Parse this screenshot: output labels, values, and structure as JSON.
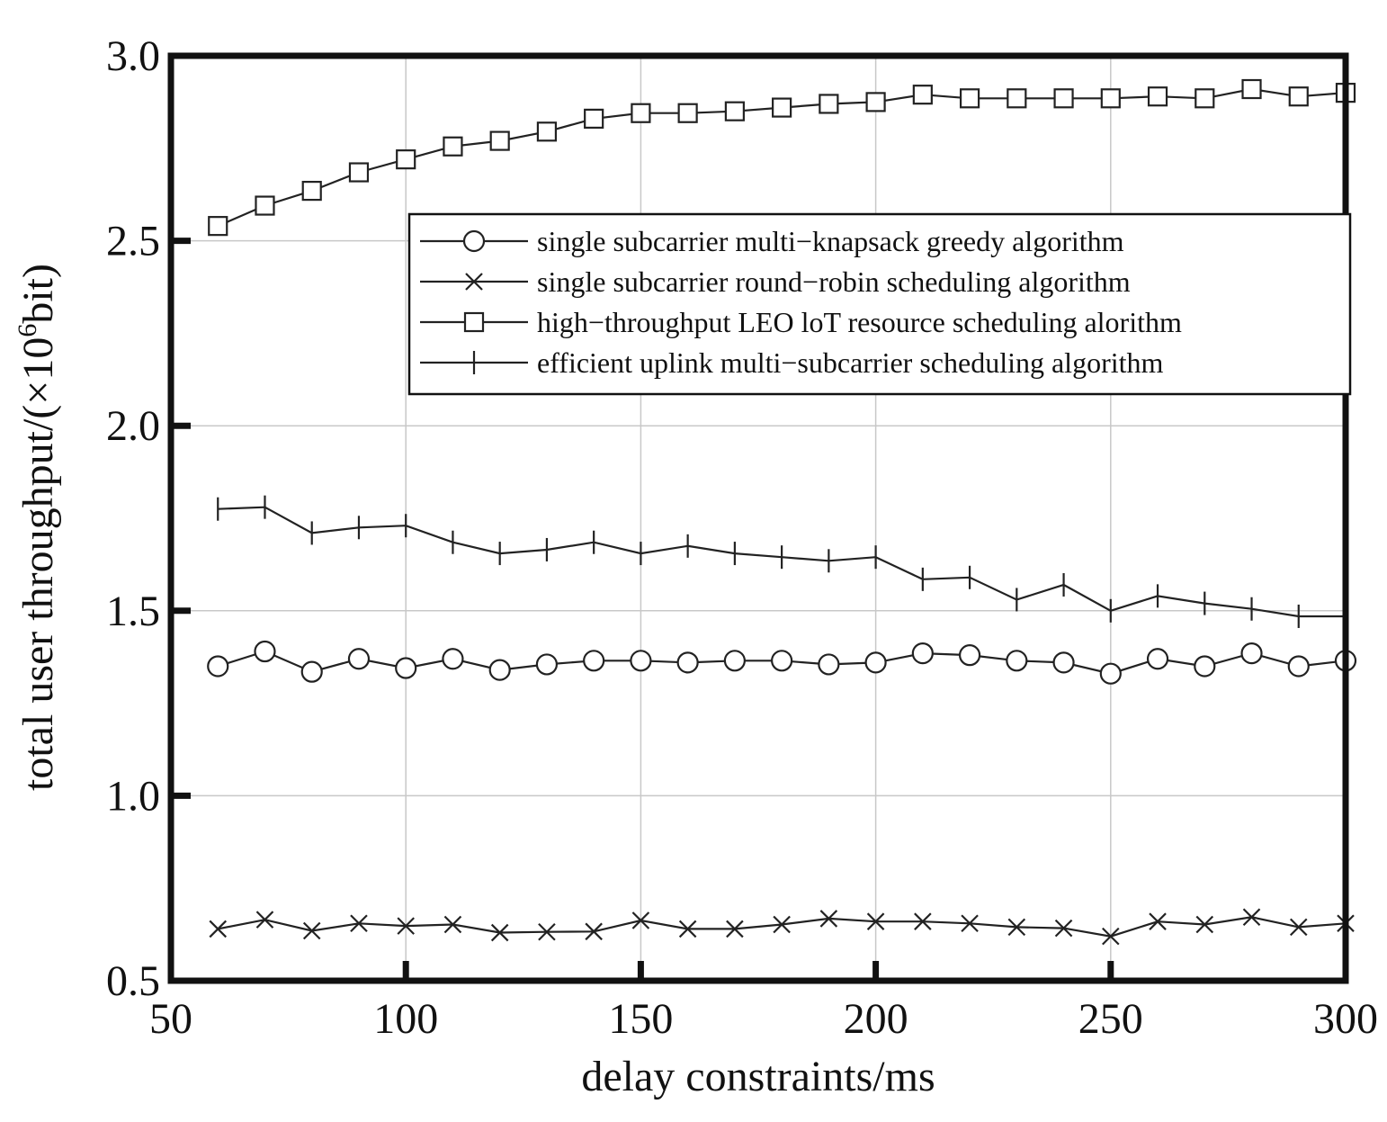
{
  "chart_data": {
    "type": "line",
    "xlabel": "delay constraints/ms",
    "ylabel_main": "total user throughput/(×10",
    "ylabel_sup": "6",
    "ylabel_end": "bit)",
    "xlim": [
      50,
      300
    ],
    "ylim": [
      0.5,
      3.0
    ],
    "xticks": [
      50,
      100,
      150,
      200,
      250,
      300
    ],
    "xtick_labels": [
      "50",
      "100",
      "150",
      "200",
      "250",
      "300"
    ],
    "yticks": [
      0.5,
      1.0,
      1.5,
      2.0,
      2.5,
      3.0
    ],
    "ytick_labels": [
      "0.5",
      "1.0",
      "1.5",
      "2.0",
      "2.5",
      "3.0"
    ],
    "grid": true,
    "legend_position": "upper-right",
    "x": [
      60,
      70,
      80,
      90,
      100,
      110,
      120,
      130,
      140,
      150,
      160,
      170,
      180,
      190,
      200,
      210,
      220,
      230,
      240,
      250,
      260,
      270,
      280,
      290,
      300
    ],
    "series": [
      {
        "name": "single subcarrier multi−knapsack greedy algorithm",
        "marker": "circle",
        "values": [
          1.35,
          1.39,
          1.335,
          1.37,
          1.345,
          1.37,
          1.34,
          1.355,
          1.365,
          1.365,
          1.36,
          1.365,
          1.365,
          1.355,
          1.36,
          1.385,
          1.38,
          1.365,
          1.36,
          1.33,
          1.37,
          1.35,
          1.385,
          1.35,
          1.365
        ]
      },
      {
        "name": "single subcarrier round−robin scheduling algorithm",
        "marker": "x",
        "values": [
          0.64,
          0.665,
          0.635,
          0.655,
          0.648,
          0.652,
          0.63,
          0.632,
          0.633,
          0.663,
          0.64,
          0.64,
          0.652,
          0.668,
          0.66,
          0.66,
          0.655,
          0.645,
          0.642,
          0.62,
          0.66,
          0.652,
          0.672,
          0.645,
          0.655
        ]
      },
      {
        "name": "high−throughput LEO loT resource scheduling alorithm",
        "marker": "square",
        "values": [
          2.54,
          2.595,
          2.635,
          2.685,
          2.72,
          2.755,
          2.77,
          2.795,
          2.83,
          2.845,
          2.845,
          2.85,
          2.86,
          2.87,
          2.875,
          2.895,
          2.885,
          2.885,
          2.885,
          2.885,
          2.89,
          2.885,
          2.91,
          2.89,
          2.9
        ]
      },
      {
        "name": "efficient uplink multi−subcarrier scheduling algorithm",
        "marker": "plus",
        "values": [
          1.775,
          1.78,
          1.71,
          1.725,
          1.73,
          1.685,
          1.655,
          1.665,
          1.685,
          1.655,
          1.675,
          1.655,
          1.645,
          1.635,
          1.645,
          1.585,
          1.59,
          1.53,
          1.57,
          1.5,
          1.54,
          1.52,
          1.505,
          1.485,
          1.485
        ]
      }
    ]
  }
}
